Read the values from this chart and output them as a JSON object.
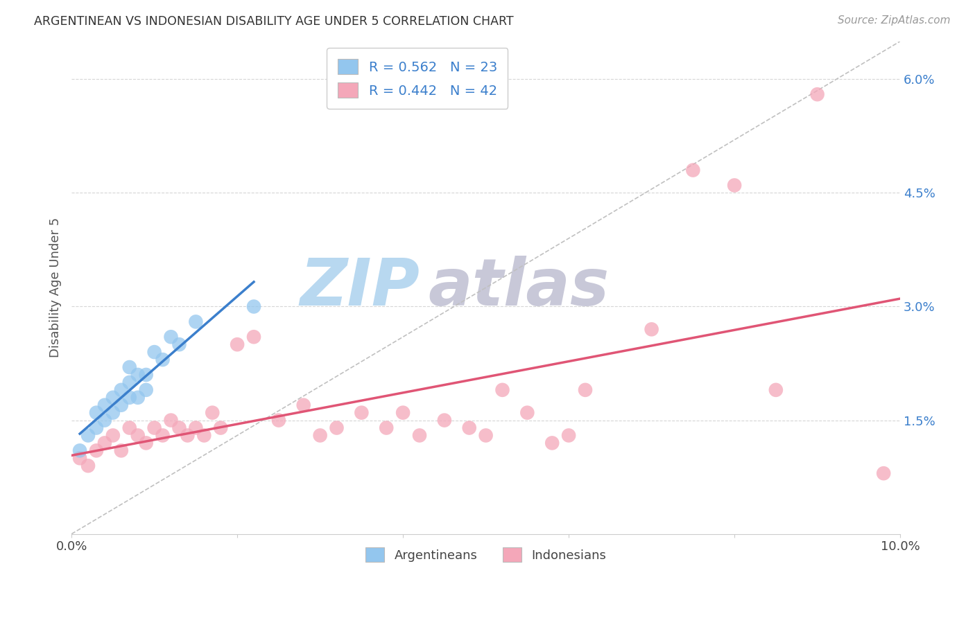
{
  "title": "ARGENTINEAN VS INDONESIAN DISABILITY AGE UNDER 5 CORRELATION CHART",
  "source": "Source: ZipAtlas.com",
  "ylabel": "Disability Age Under 5",
  "xlim": [
    0.0,
    0.1
  ],
  "ylim": [
    0.0,
    0.065
  ],
  "yticks": [
    0.015,
    0.03,
    0.045,
    0.06
  ],
  "ytick_labels": [
    "1.5%",
    "3.0%",
    "4.5%",
    "6.0%"
  ],
  "xticks": [
    0.0,
    0.02,
    0.04,
    0.06,
    0.08,
    0.1
  ],
  "xtick_labels": [
    "0.0%",
    "",
    "",
    "",
    "",
    "10.0%"
  ],
  "argentina_color": "#93C6EE",
  "indonesia_color": "#F4A7B9",
  "argentina_line_color": "#3B7FCC",
  "indonesia_line_color": "#E05575",
  "argentina_R": 0.562,
  "argentina_N": 23,
  "indonesia_R": 0.442,
  "indonesia_N": 42,
  "argentina_x": [
    0.001,
    0.002,
    0.003,
    0.003,
    0.004,
    0.004,
    0.005,
    0.005,
    0.006,
    0.006,
    0.007,
    0.007,
    0.007,
    0.008,
    0.008,
    0.009,
    0.009,
    0.01,
    0.011,
    0.012,
    0.013,
    0.015,
    0.022
  ],
  "argentina_y": [
    0.011,
    0.013,
    0.014,
    0.016,
    0.015,
    0.017,
    0.016,
    0.018,
    0.017,
    0.019,
    0.018,
    0.02,
    0.022,
    0.018,
    0.021,
    0.019,
    0.021,
    0.024,
    0.023,
    0.026,
    0.025,
    0.028,
    0.03
  ],
  "indonesia_x": [
    0.001,
    0.002,
    0.003,
    0.004,
    0.005,
    0.006,
    0.007,
    0.008,
    0.009,
    0.01,
    0.011,
    0.012,
    0.013,
    0.014,
    0.015,
    0.016,
    0.017,
    0.018,
    0.02,
    0.022,
    0.025,
    0.028,
    0.03,
    0.032,
    0.035,
    0.038,
    0.04,
    0.042,
    0.045,
    0.048,
    0.05,
    0.052,
    0.055,
    0.058,
    0.06,
    0.062,
    0.07,
    0.075,
    0.08,
    0.085,
    0.09,
    0.098
  ],
  "indonesia_y": [
    0.01,
    0.009,
    0.011,
    0.012,
    0.013,
    0.011,
    0.014,
    0.013,
    0.012,
    0.014,
    0.013,
    0.015,
    0.014,
    0.013,
    0.014,
    0.013,
    0.016,
    0.014,
    0.025,
    0.026,
    0.015,
    0.017,
    0.013,
    0.014,
    0.016,
    0.014,
    0.016,
    0.013,
    0.015,
    0.014,
    0.013,
    0.019,
    0.016,
    0.012,
    0.013,
    0.019,
    0.027,
    0.048,
    0.046,
    0.019,
    0.058,
    0.008
  ],
  "background_color": "#FFFFFF",
  "grid_color": "#CCCCCC",
  "watermark_zip_color": "#B8D8F0",
  "watermark_atlas_color": "#C8C8D8",
  "diagonal_line_color": "#C0C0C0"
}
